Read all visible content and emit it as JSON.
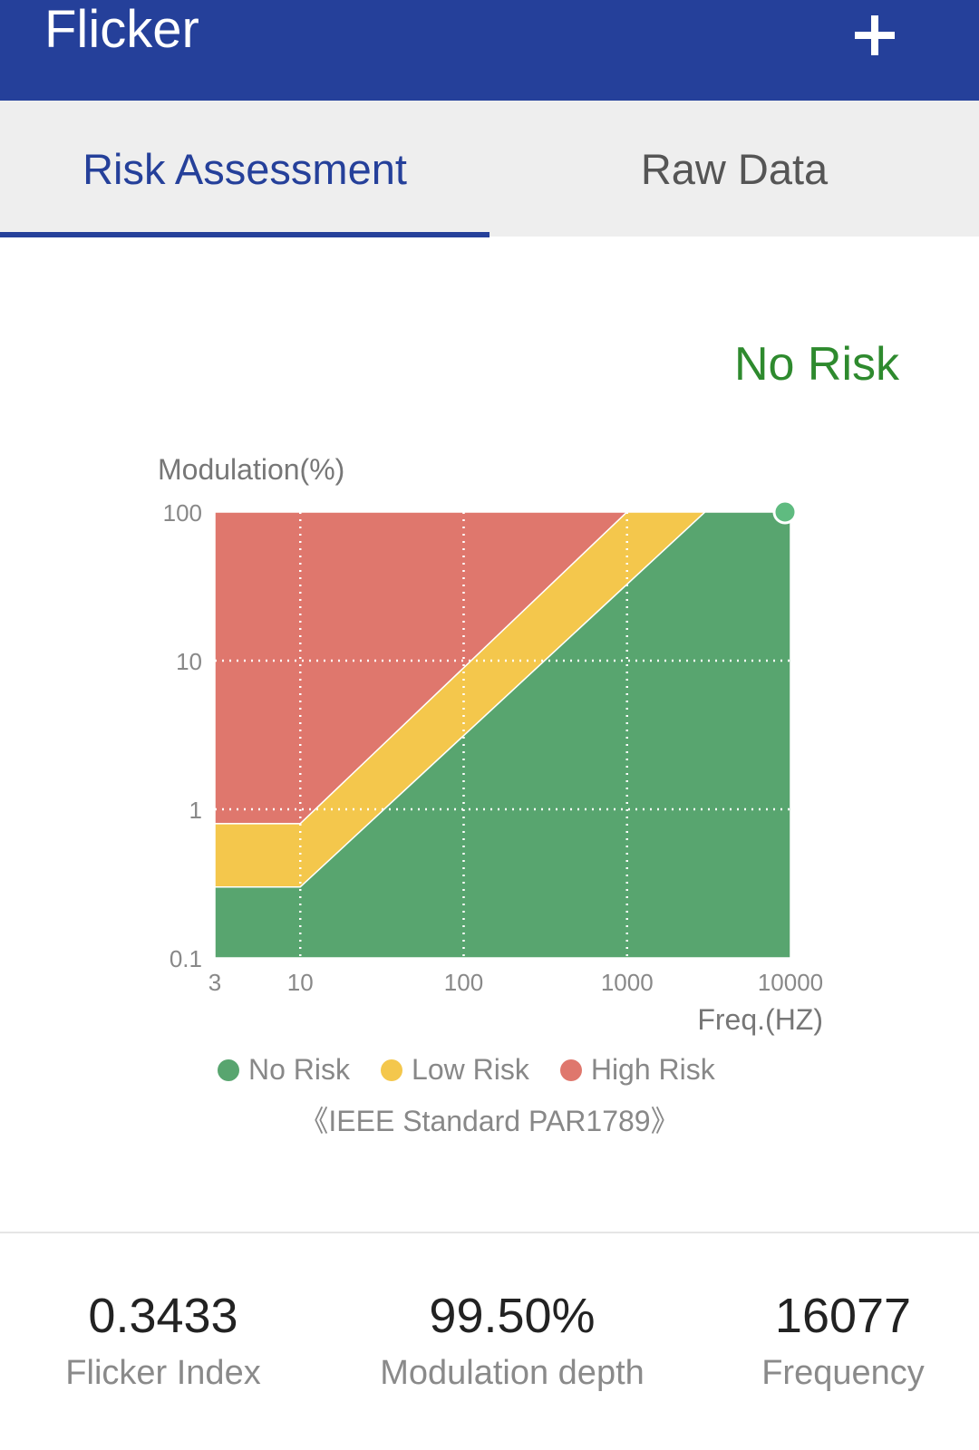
{
  "app": {
    "title": "Flicker",
    "add_icon": "plus-icon"
  },
  "tabs": [
    {
      "label": "Risk Assessment",
      "active": true
    },
    {
      "label": "Raw Data",
      "active": false
    }
  ],
  "status": {
    "text": "No Risk",
    "color": "#2e8a2e"
  },
  "chart_data": {
    "type": "area",
    "scale": "log-log",
    "ylabel": "Modulation(%)",
    "xlabel": "Freq.(HZ)",
    "x_ticks": [
      "3",
      "10",
      "100",
      "1000",
      "10000"
    ],
    "y_ticks": [
      "100",
      "10",
      "1",
      "0.1"
    ],
    "xlim": [
      3,
      10000
    ],
    "ylim": [
      0.1,
      100
    ],
    "grid": true,
    "regions": [
      {
        "name": "High Risk",
        "color": "#df776d",
        "polygon": [
          [
            3,
            100
          ],
          [
            1000,
            100
          ],
          [
            10,
            0.8
          ],
          [
            3,
            0.8
          ]
        ]
      },
      {
        "name": "Low Risk",
        "color": "#f4c74c",
        "polygon": [
          [
            1000,
            100
          ],
          [
            3000,
            100
          ],
          [
            10,
            0.3
          ],
          [
            3,
            0.3
          ],
          [
            3,
            0.8
          ],
          [
            10,
            0.8
          ]
        ]
      },
      {
        "name": "No Risk",
        "color": "#58a56f",
        "polygon": [
          [
            3000,
            100
          ],
          [
            10000,
            100
          ],
          [
            10000,
            0.1
          ],
          [
            3,
            0.1
          ],
          [
            3,
            0.3
          ],
          [
            10,
            0.3
          ]
        ]
      }
    ],
    "point": {
      "x": 10000,
      "y": 100,
      "color": "#5fbb80"
    },
    "legend": [
      {
        "label": "No Risk",
        "color": "#58a56f"
      },
      {
        "label": "Low Risk",
        "color": "#f4c74c"
      },
      {
        "label": "High Risk",
        "color": "#df776d"
      }
    ],
    "standard": "《IEEE Standard PAR1789》"
  },
  "metrics": [
    {
      "value": "0.3433",
      "label": "Flicker Index"
    },
    {
      "value": "99.50%",
      "label": "Modulation depth"
    },
    {
      "value": "16077",
      "label": "Frequency"
    }
  ]
}
